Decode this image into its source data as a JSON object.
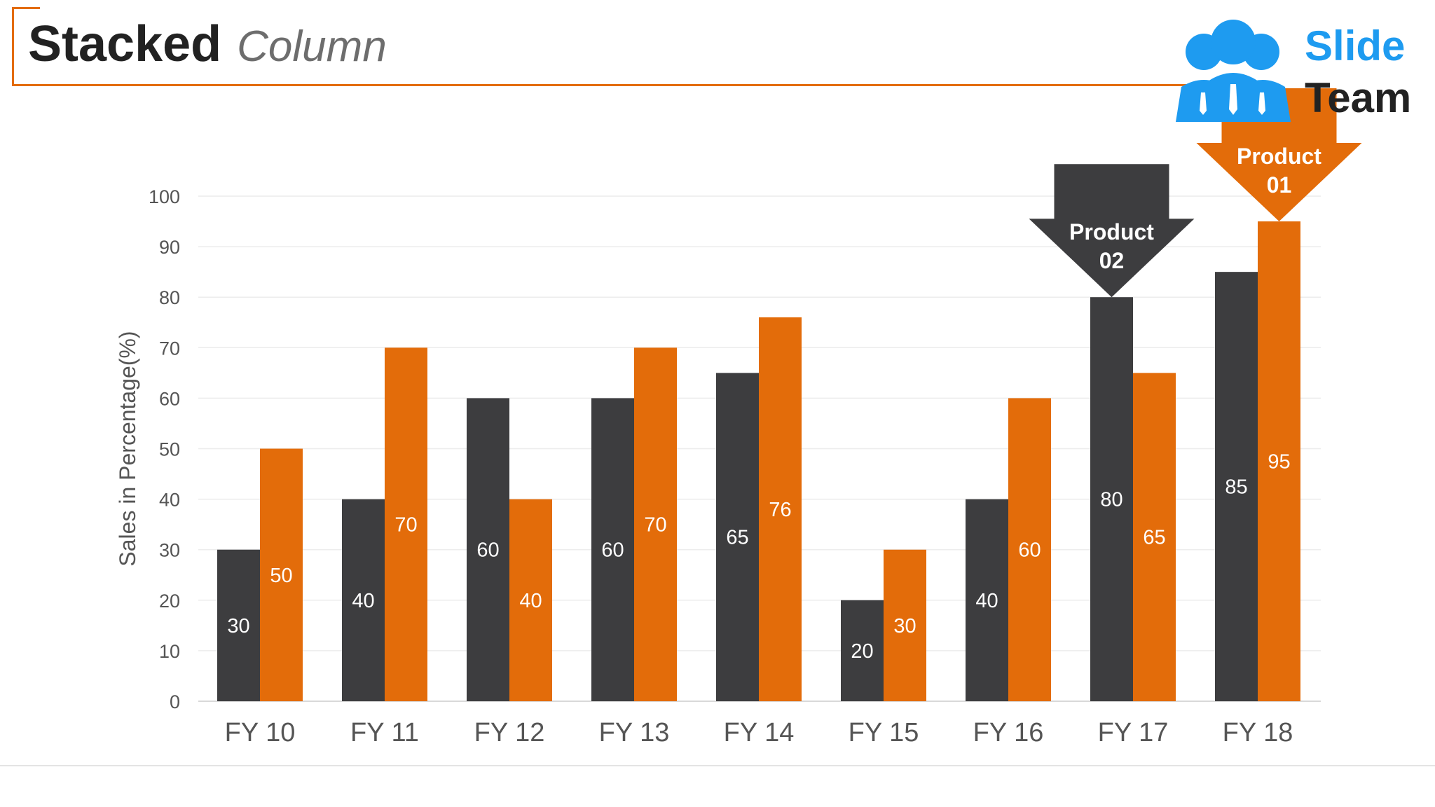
{
  "slide": {
    "title_bold": "Stacked",
    "title_light": "Column"
  },
  "logo": {
    "line1": "Slide",
    "line2": "Team"
  },
  "colors": {
    "series1": "#3D3D3F",
    "series2": "#E36C0A",
    "accent": "#E36C0A",
    "logo_blue": "#1E9BF0"
  },
  "callouts": [
    {
      "line1": "Product",
      "line2": "02",
      "category": "FY 17",
      "series": 0
    },
    {
      "line1": "Product",
      "line2": "01",
      "category": "FY 18",
      "series": 1
    }
  ],
  "chart_data": {
    "type": "bar",
    "title": "",
    "xlabel": "",
    "ylabel": "Sales in Percentage(%)",
    "ylim": [
      0,
      100
    ],
    "yticks": [
      0,
      10,
      20,
      30,
      40,
      50,
      60,
      70,
      80,
      90,
      100
    ],
    "grid": true,
    "categories": [
      "FY 10",
      "FY 11",
      "FY 12",
      "FY 13",
      "FY 14",
      "FY 15",
      "FY 16",
      "FY 17",
      "FY 18"
    ],
    "series": [
      {
        "values": [
          30,
          40,
          60,
          60,
          65,
          20,
          40,
          80,
          85
        ]
      },
      {
        "values": [
          50,
          70,
          40,
          70,
          76,
          30,
          60,
          65,
          95
        ]
      }
    ]
  }
}
